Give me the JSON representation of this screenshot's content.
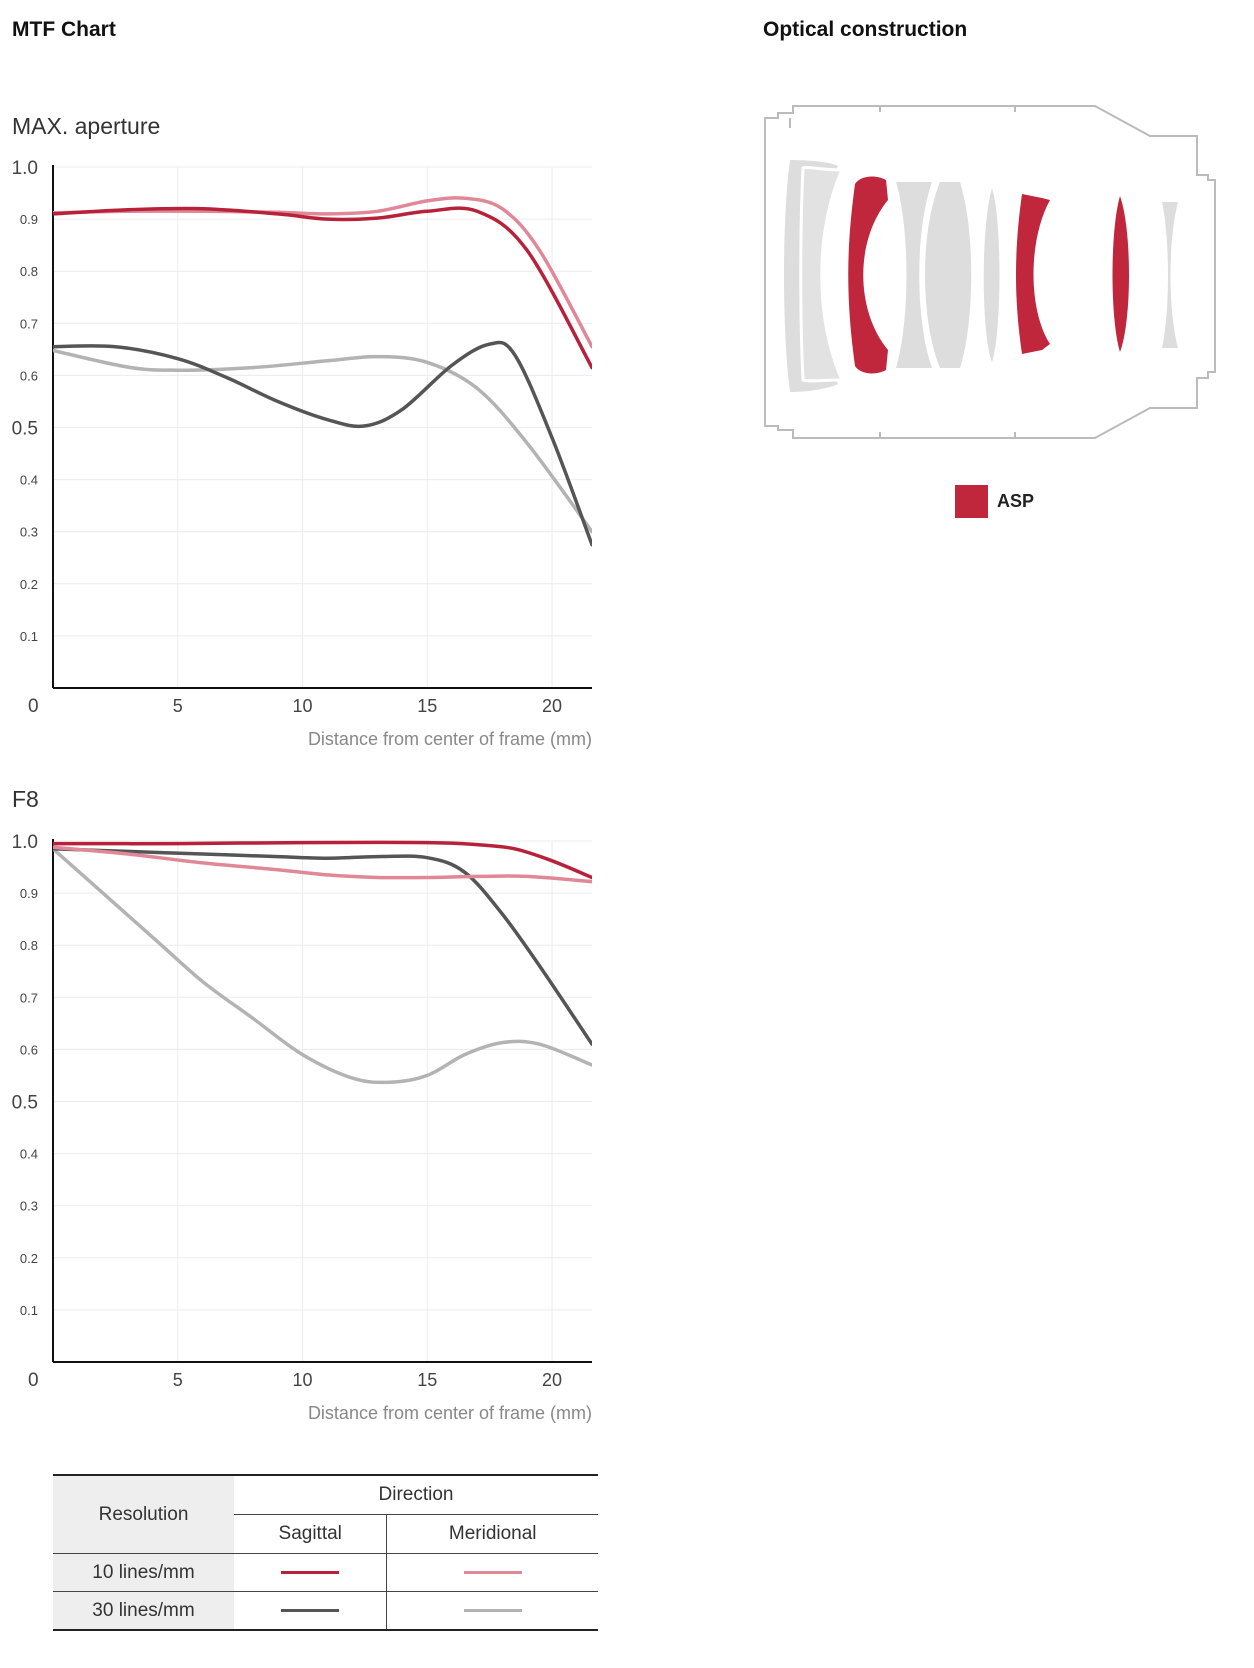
{
  "headings": {
    "mtf": "MTF Chart",
    "optical": "Optical construction"
  },
  "charts_meta": [
    {
      "label": "MAX. aperture"
    },
    {
      "label": "F8"
    }
  ],
  "colors": {
    "s10": "#b8213a",
    "m10": "#e08898",
    "s30": "#555555",
    "m30": "#b3b3b3",
    "asp": "#c0273d",
    "lens_gray": "#dddddd"
  },
  "chart_data": [
    {
      "type": "line",
      "title": "MAX. aperture",
      "xlabel": "Distance from center of frame (mm)",
      "ylabel": "",
      "xlim": [
        0,
        21.6
      ],
      "ylim": [
        0,
        1.0
      ],
      "xticks": [
        "5",
        "10",
        "15",
        "20"
      ],
      "yticks": [
        "0",
        "0.1",
        "0.2",
        "0.3",
        "0.4",
        "0.5",
        "0.6",
        "0.7",
        "0.8",
        "0.9",
        "1.0"
      ],
      "grid": true,
      "series": [
        {
          "key": "s10",
          "x": [
            0,
            3,
            6,
            9,
            11,
            13,
            15,
            17,
            19,
            21.6
          ],
          "y": [
            0.91,
            0.918,
            0.92,
            0.91,
            0.9,
            0.902,
            0.915,
            0.915,
            0.84,
            0.615
          ]
        },
        {
          "key": "m10",
          "x": [
            0,
            3,
            6,
            9,
            11,
            13,
            15,
            16.5,
            18,
            19.5,
            21.6
          ],
          "y": [
            0.912,
            0.915,
            0.915,
            0.913,
            0.91,
            0.915,
            0.935,
            0.94,
            0.92,
            0.84,
            0.655
          ]
        },
        {
          "key": "s30",
          "x": [
            0,
            2.5,
            5,
            7,
            9,
            11,
            12.5,
            14,
            16,
            17.5,
            18.5,
            20,
            21.6
          ],
          "y": [
            0.655,
            0.655,
            0.632,
            0.595,
            0.55,
            0.515,
            0.503,
            0.535,
            0.62,
            0.66,
            0.64,
            0.48,
            0.275
          ]
        },
        {
          "key": "m30",
          "x": [
            0,
            3,
            5,
            8,
            11,
            13,
            15,
            17,
            19,
            21.6
          ],
          "y": [
            0.648,
            0.616,
            0.61,
            0.615,
            0.628,
            0.636,
            0.625,
            0.575,
            0.47,
            0.3
          ]
        }
      ]
    },
    {
      "type": "line",
      "title": "F8",
      "xlabel": "Distance from center of frame (mm)",
      "ylabel": "",
      "xlim": [
        0,
        21.6
      ],
      "ylim": [
        0,
        1.0
      ],
      "xticks": [
        "5",
        "10",
        "15",
        "20"
      ],
      "yticks": [
        "0",
        "0.1",
        "0.2",
        "0.3",
        "0.4",
        "0.5",
        "0.6",
        "0.7",
        "0.8",
        "0.9",
        "1.0"
      ],
      "grid": true,
      "series": [
        {
          "key": "s10",
          "x": [
            0,
            5,
            10,
            15,
            17,
            18.5,
            20,
            21.6
          ],
          "y": [
            0.995,
            0.995,
            0.997,
            0.997,
            0.993,
            0.985,
            0.962,
            0.93
          ]
        },
        {
          "key": "m10",
          "x": [
            0,
            3,
            6,
            9,
            11,
            13,
            15,
            17,
            19,
            21.6
          ],
          "y": [
            0.988,
            0.975,
            0.958,
            0.945,
            0.935,
            0.93,
            0.93,
            0.932,
            0.932,
            0.922
          ]
        },
        {
          "key": "s30",
          "x": [
            0,
            3,
            6,
            9,
            11,
            13,
            15,
            16.5,
            18,
            19.5,
            21.6
          ],
          "y": [
            0.985,
            0.98,
            0.975,
            0.97,
            0.967,
            0.97,
            0.968,
            0.94,
            0.86,
            0.76,
            0.61
          ]
        },
        {
          "key": "m30",
          "x": [
            0,
            2,
            4,
            6,
            8,
            10,
            12,
            13.5,
            15,
            16.5,
            18,
            19.5,
            21.6
          ],
          "y": [
            0.985,
            0.9,
            0.815,
            0.73,
            0.66,
            0.59,
            0.545,
            0.537,
            0.55,
            0.59,
            0.613,
            0.61,
            0.57
          ]
        }
      ]
    }
  ],
  "legend": {
    "asp_label": "ASP",
    "table": {
      "resolution_header": "Resolution",
      "direction_header": "Direction",
      "sagittal": "Sagittal",
      "meridional": "Meridional",
      "row1_label": "10 lines/mm",
      "row2_label": "30 lines/mm"
    }
  }
}
